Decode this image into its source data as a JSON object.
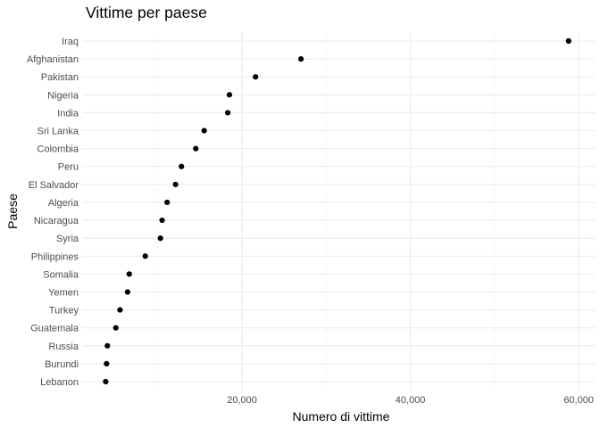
{
  "chart_data": {
    "type": "scatter",
    "title": "Vittime per paese",
    "xlabel": "Numero di vittime",
    "ylabel": "Paese",
    "xlim": [
      1000,
      62000
    ],
    "xticks": [
      {
        "value": 20000,
        "label": "20,000"
      },
      {
        "value": 40000,
        "label": "40,000"
      },
      {
        "value": 60000,
        "label": "60,000"
      }
    ],
    "x_minor_gridlines": [
      10000,
      30000,
      50000
    ],
    "grid": true,
    "points": [
      {
        "category": "Iraq",
        "value": 58800
      },
      {
        "category": "Afghanistan",
        "value": 27000
      },
      {
        "category": "Pakistan",
        "value": 21600
      },
      {
        "category": "Nigeria",
        "value": 18500
      },
      {
        "category": "India",
        "value": 18300
      },
      {
        "category": "Sri Lanka",
        "value": 15500
      },
      {
        "category": "Colombia",
        "value": 14500
      },
      {
        "category": "Peru",
        "value": 12800
      },
      {
        "category": "El Salvador",
        "value": 12100
      },
      {
        "category": "Algeria",
        "value": 11100
      },
      {
        "category": "Nicaragua",
        "value": 10500
      },
      {
        "category": "Syria",
        "value": 10300
      },
      {
        "category": "Philippines",
        "value": 8500
      },
      {
        "category": "Somalia",
        "value": 6600
      },
      {
        "category": "Yemen",
        "value": 6400
      },
      {
        "category": "Turkey",
        "value": 5500
      },
      {
        "category": "Guatemala",
        "value": 5000
      },
      {
        "category": "Russia",
        "value": 4000
      },
      {
        "category": "Burundi",
        "value": 3900
      },
      {
        "category": "Lebanon",
        "value": 3800
      }
    ]
  }
}
